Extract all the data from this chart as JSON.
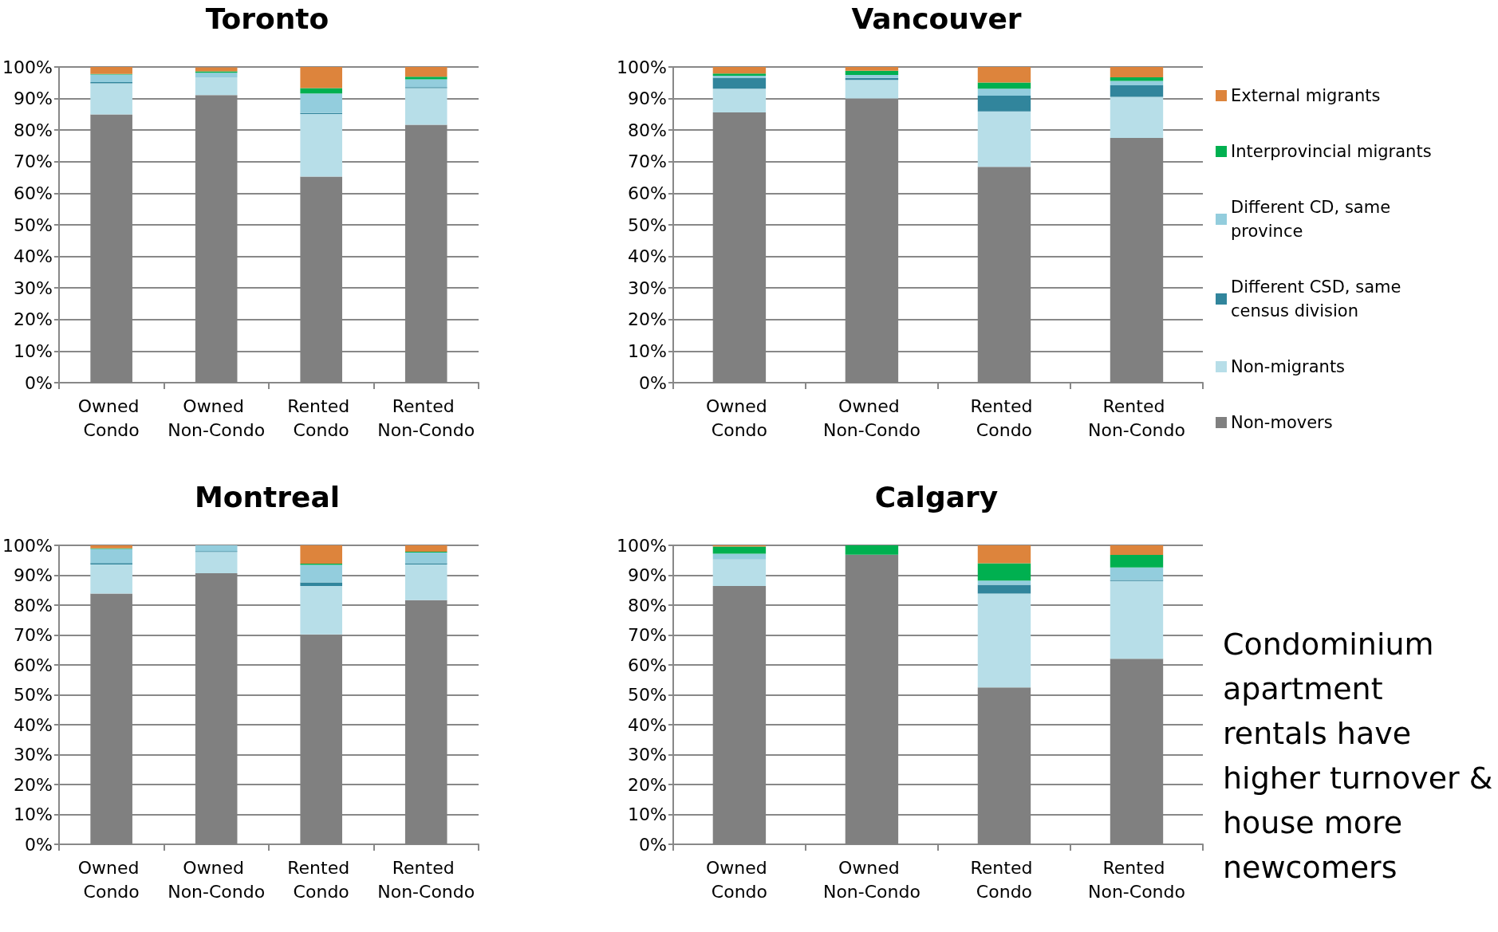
{
  "chart_data": [
    {
      "type": "bar",
      "title": "Toronto",
      "stacked": true,
      "grid": "y",
      "legend": false,
      "categories": [
        "Owned Condo",
        "Owned Non-Condo",
        "Rented Condo",
        "Rented Non-Condo"
      ],
      "ylim": [
        0,
        100
      ],
      "yticks": [
        {
          "value": 0,
          "label": "0%"
        },
        {
          "value": 10,
          "label": "10%"
        },
        {
          "value": 20,
          "label": "20%"
        },
        {
          "value": 30,
          "label": "30%"
        },
        {
          "value": 40,
          "label": "40%"
        },
        {
          "value": 50,
          "label": "50%"
        },
        {
          "value": 60,
          "label": "60%"
        },
        {
          "value": 70,
          "label": "70%"
        },
        {
          "value": 80,
          "label": "80%"
        },
        {
          "value": 90,
          "label": "90%"
        },
        {
          "value": 100,
          "label": "100%"
        }
      ],
      "series": [
        {
          "color": "#808080",
          "values": [
            85,
            91.1,
            65.3,
            81.7
          ]
        },
        {
          "color": "#b7dee8",
          "values": [
            9.8,
            5.6,
            19.8,
            11.6
          ]
        },
        {
          "color": "#31859c",
          "values": [
            0.4,
            null,
            0.3,
            0.3
          ]
        },
        {
          "color": "#93cddd",
          "values": [
            2.4,
            1.5,
            6.2,
            2.5
          ]
        },
        {
          "color": "#00b050",
          "values": [
            0.2,
            0.4,
            1.7,
            0.8
          ]
        },
        {
          "color": "#dd843c",
          "values": [
            2.2,
            1.3,
            6.7,
            3.1
          ]
        }
      ]
    },
    {
      "type": "bar",
      "title": "Vancouver",
      "stacked": true,
      "grid": "y",
      "legend": "right",
      "categories": [
        "Owned Condo",
        "Owned Non-Condo",
        "Rented Condo",
        "Rented Non-Condo"
      ],
      "ylim": [
        0,
        100
      ],
      "yticks": [
        {
          "value": 0,
          "label": "0%"
        },
        {
          "value": 10,
          "label": "10%"
        },
        {
          "value": 20,
          "label": "20%"
        },
        {
          "value": 30,
          "label": "30%"
        },
        {
          "value": 40,
          "label": "40%"
        },
        {
          "value": 50,
          "label": "50%"
        },
        {
          "value": 60,
          "label": "60%"
        },
        {
          "value": 70,
          "label": "70%"
        },
        {
          "value": 80,
          "label": "80%"
        },
        {
          "value": 90,
          "label": "90%"
        },
        {
          "value": 100,
          "label": "100%"
        }
      ],
      "series": [
        {
          "name": "Non-movers",
          "color": "#808080",
          "values": [
            85.6,
            90.0,
            68.4,
            77.5
          ]
        },
        {
          "name": "Non-migrants",
          "color": "#b7dee8",
          "values": [
            7.5,
            5.9,
            17.5,
            13.0
          ]
        },
        {
          "name": "Different CSD, same census division",
          "color": "#31859c",
          "values": [
            3.5,
            0.6,
            5.0,
            3.7
          ]
        },
        {
          "name": "Different CD, same province",
          "color": "#93cddd",
          "values": [
            0.6,
            1.0,
            2.2,
            1.4
          ]
        },
        {
          "name": "Interprovincial migrants",
          "color": "#00b050",
          "values": [
            0.7,
            1.3,
            2.0,
            1.1
          ]
        },
        {
          "name": "External migrants",
          "color": "#dd843c",
          "values": [
            2.1,
            1.2,
            4.9,
            3.3
          ]
        }
      ]
    },
    {
      "type": "bar",
      "title": "Montreal",
      "stacked": true,
      "grid": "y",
      "legend": false,
      "categories": [
        "Owned Condo",
        "Owned Non-Condo",
        "Rented Condo",
        "Rented Non-Condo"
      ],
      "ylim": [
        0,
        100
      ],
      "yticks": [
        {
          "value": 0,
          "label": "0%"
        },
        {
          "value": 10,
          "label": "10%"
        },
        {
          "value": 20,
          "label": "20%"
        },
        {
          "value": 30,
          "label": "30%"
        },
        {
          "value": 40,
          "label": "40%"
        },
        {
          "value": 50,
          "label": "50%"
        },
        {
          "value": 60,
          "label": "60%"
        },
        {
          "value": 70,
          "label": "70%"
        },
        {
          "value": 80,
          "label": "80%"
        },
        {
          "value": 90,
          "label": "90%"
        },
        {
          "value": 100,
          "label": "100%"
        }
      ],
      "series": [
        {
          "color": "#808080",
          "values": [
            83.9,
            90.7,
            70.2,
            81.7
          ]
        },
        {
          "color": "#b7dee8",
          "values": [
            9.7,
            7.1,
            16.2,
            11.9
          ]
        },
        {
          "color": "#31859c",
          "values": [
            0.5,
            0.3,
            1.2,
            0.4
          ]
        },
        {
          "color": "#93cddd",
          "values": [
            4.7,
            1.9,
            5.9,
            3.6
          ]
        },
        {
          "color": "#00b050",
          "values": [
            0.2,
            0,
            0.4,
            0.3
          ]
        },
        {
          "color": "#dd843c",
          "values": [
            1.0,
            0,
            6.1,
            2.1
          ]
        }
      ]
    },
    {
      "type": "bar",
      "title": "Calgary",
      "stacked": true,
      "grid": "y",
      "legend": false,
      "categories": [
        "Owned Condo",
        "Owned Non-Condo",
        "Rented Condo",
        "Rented Non-Condo"
      ],
      "ylim": [
        0,
        100
      ],
      "yticks": [
        {
          "value": 0,
          "label": "0%"
        },
        {
          "value": 10,
          "label": "10%"
        },
        {
          "value": 20,
          "label": "20%"
        },
        {
          "value": 30,
          "label": "30%"
        },
        {
          "value": 40,
          "label": "40%"
        },
        {
          "value": 50,
          "label": "50%"
        },
        {
          "value": 60,
          "label": "60%"
        },
        {
          "value": 70,
          "label": "70%"
        },
        {
          "value": 80,
          "label": "80%"
        },
        {
          "value": 90,
          "label": "90%"
        },
        {
          "value": 100,
          "label": "100%"
        }
      ],
      "annotations": [
        "Condominium apartment rentals have higher turnover & house more newcomers"
      ],
      "series": [
        {
          "color": "#808080",
          "values": [
            86.4,
            96.9,
            52.5,
            62.1
          ]
        },
        {
          "color": "#b7dee8",
          "values": [
            8.9,
            0,
            31.4,
            26.0
          ]
        },
        {
          "color": "#31859c",
          "values": [
            0,
            0,
            2.9,
            0.3
          ]
        },
        {
          "color": "#93cddd",
          "values": [
            1.9,
            0,
            1.4,
            4.2
          ]
        },
        {
          "color": "#00b050",
          "values": [
            2.4,
            3.1,
            5.8,
            4.2
          ]
        },
        {
          "color": "#dd843c",
          "values": [
            0.4,
            0,
            6.0,
            3.2
          ]
        }
      ]
    }
  ]
}
